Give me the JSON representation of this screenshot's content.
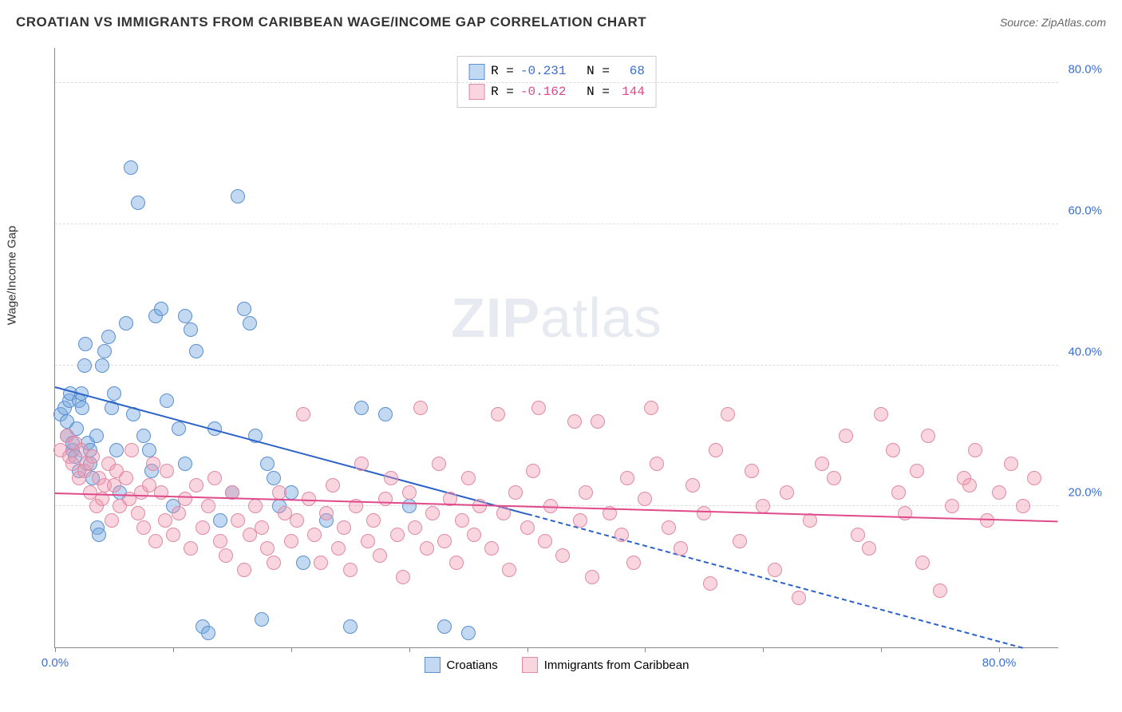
{
  "header": {
    "title": "CROATIAN VS IMMIGRANTS FROM CARIBBEAN WAGE/INCOME GAP CORRELATION CHART",
    "source_prefix": "Source: ",
    "source_name": "ZipAtlas.com"
  },
  "ylabel": "Wage/Income Gap",
  "watermark": {
    "zip": "ZIP",
    "atlas": "atlas"
  },
  "chart": {
    "type": "scatter",
    "xlim": [
      0,
      85
    ],
    "ylim": [
      0,
      85
    ],
    "background_color": "#ffffff",
    "grid_color": "#dddddd",
    "axis_color": "#888888",
    "marker_radius": 9,
    "marker_stroke_width": 1,
    "xticks": [
      0,
      10,
      20,
      30,
      40,
      50,
      60,
      70,
      80
    ],
    "xtick_labels": {
      "0": "0.0%",
      "80": "80.0%"
    },
    "xtick_label_color": "#3b6fd4",
    "yticks": [
      20,
      40,
      60,
      80
    ],
    "ytick_labels": {
      "20": "20.0%",
      "40": "40.0%",
      "60": "60.0%",
      "80": "80.0%"
    },
    "ytick_label_color": "#3b6fd4",
    "label_fontsize": 15
  },
  "series": [
    {
      "name": "Croatians",
      "fill": "rgba(120,170,225,0.45)",
      "stroke": "#5a8fd0",
      "trend_color": "#2b62c9",
      "trend": {
        "x1": 0,
        "y1": 37,
        "x2": 40,
        "y2": 19
      },
      "trend_dash": {
        "x1": 40,
        "y1": 19,
        "x2": 82,
        "y2": 0
      },
      "R": "-0.231",
      "N": "68",
      "stat_color": "#3b6fd4",
      "points": [
        [
          0.5,
          33
        ],
        [
          0.8,
          34
        ],
        [
          1,
          30
        ],
        [
          1,
          32
        ],
        [
          1.2,
          35
        ],
        [
          1.3,
          36
        ],
        [
          1.5,
          28
        ],
        [
          1.5,
          29
        ],
        [
          1.7,
          27
        ],
        [
          1.8,
          31
        ],
        [
          2,
          25
        ],
        [
          2,
          35
        ],
        [
          2.2,
          36
        ],
        [
          2.3,
          34
        ],
        [
          2.5,
          40
        ],
        [
          2.6,
          43
        ],
        [
          2.8,
          29
        ],
        [
          3,
          26
        ],
        [
          3,
          28
        ],
        [
          3.2,
          24
        ],
        [
          3.5,
          30
        ],
        [
          3.6,
          17
        ],
        [
          3.7,
          16
        ],
        [
          4,
          40
        ],
        [
          4.2,
          42
        ],
        [
          4.5,
          44
        ],
        [
          4.8,
          34
        ],
        [
          5,
          36
        ],
        [
          5.2,
          28
        ],
        [
          5.5,
          22
        ],
        [
          6,
          46
        ],
        [
          6.4,
          68
        ],
        [
          6.6,
          33
        ],
        [
          7,
          63
        ],
        [
          7.5,
          30
        ],
        [
          8,
          28
        ],
        [
          8.2,
          25
        ],
        [
          8.5,
          47
        ],
        [
          9,
          48
        ],
        [
          9.5,
          35
        ],
        [
          10,
          20
        ],
        [
          10.5,
          31
        ],
        [
          11,
          26
        ],
        [
          11,
          47
        ],
        [
          11.5,
          45
        ],
        [
          12,
          42
        ],
        [
          12.5,
          3
        ],
        [
          13,
          2
        ],
        [
          13.5,
          31
        ],
        [
          14,
          18
        ],
        [
          15,
          22
        ],
        [
          15.5,
          64
        ],
        [
          16,
          48
        ],
        [
          16.5,
          46
        ],
        [
          17,
          30
        ],
        [
          17.5,
          4
        ],
        [
          18,
          26
        ],
        [
          18.5,
          24
        ],
        [
          19,
          20
        ],
        [
          20,
          22
        ],
        [
          21,
          12
        ],
        [
          23,
          18
        ],
        [
          25,
          3
        ],
        [
          26,
          34
        ],
        [
          28,
          33
        ],
        [
          30,
          20
        ],
        [
          33,
          3
        ],
        [
          35,
          2
        ]
      ]
    },
    {
      "name": "Immigrants from Caribbean",
      "fill": "rgba(240,150,175,0.40)",
      "stroke": "#e08aa5",
      "trend_color": "#e04a8a",
      "trend": {
        "x1": 0,
        "y1": 22,
        "x2": 85,
        "y2": 18
      },
      "R": "-0.162",
      "N": "144",
      "stat_color": "#e04a8a",
      "points": [
        [
          0.5,
          28
        ],
        [
          1,
          30
        ],
        [
          1.2,
          27
        ],
        [
          1.5,
          26
        ],
        [
          1.7,
          29
        ],
        [
          2,
          24
        ],
        [
          2.2,
          28
        ],
        [
          2.5,
          25
        ],
        [
          2.7,
          26
        ],
        [
          3,
          22
        ],
        [
          3.2,
          27
        ],
        [
          3.5,
          20
        ],
        [
          3.7,
          24
        ],
        [
          4,
          21
        ],
        [
          4.2,
          23
        ],
        [
          4.5,
          26
        ],
        [
          4.8,
          18
        ],
        [
          5,
          23
        ],
        [
          5.2,
          25
        ],
        [
          5.5,
          20
        ],
        [
          6,
          24
        ],
        [
          6.3,
          21
        ],
        [
          6.5,
          28
        ],
        [
          7,
          19
        ],
        [
          7.3,
          22
        ],
        [
          7.5,
          17
        ],
        [
          8,
          23
        ],
        [
          8.3,
          26
        ],
        [
          8.5,
          15
        ],
        [
          9,
          22
        ],
        [
          9.3,
          18
        ],
        [
          9.5,
          25
        ],
        [
          10,
          16
        ],
        [
          10.5,
          19
        ],
        [
          11,
          21
        ],
        [
          11.5,
          14
        ],
        [
          12,
          23
        ],
        [
          12.5,
          17
        ],
        [
          13,
          20
        ],
        [
          13.5,
          24
        ],
        [
          14,
          15
        ],
        [
          14.5,
          13
        ],
        [
          15,
          22
        ],
        [
          15.5,
          18
        ],
        [
          16,
          11
        ],
        [
          16.5,
          16
        ],
        [
          17,
          20
        ],
        [
          17.5,
          17
        ],
        [
          18,
          14
        ],
        [
          18.5,
          12
        ],
        [
          19,
          22
        ],
        [
          19.5,
          19
        ],
        [
          20,
          15
        ],
        [
          20.5,
          18
        ],
        [
          21,
          33
        ],
        [
          21.5,
          21
        ],
        [
          22,
          16
        ],
        [
          22.5,
          12
        ],
        [
          23,
          19
        ],
        [
          23.5,
          23
        ],
        [
          24,
          14
        ],
        [
          24.5,
          17
        ],
        [
          25,
          11
        ],
        [
          25.5,
          20
        ],
        [
          26,
          26
        ],
        [
          26.5,
          15
        ],
        [
          27,
          18
        ],
        [
          27.5,
          13
        ],
        [
          28,
          21
        ],
        [
          28.5,
          24
        ],
        [
          29,
          16
        ],
        [
          29.5,
          10
        ],
        [
          30,
          22
        ],
        [
          30.5,
          17
        ],
        [
          31,
          34
        ],
        [
          31.5,
          14
        ],
        [
          32,
          19
        ],
        [
          32.5,
          26
        ],
        [
          33,
          15
        ],
        [
          33.5,
          21
        ],
        [
          34,
          12
        ],
        [
          34.5,
          18
        ],
        [
          35,
          24
        ],
        [
          35.5,
          16
        ],
        [
          36,
          20
        ],
        [
          37,
          14
        ],
        [
          37.5,
          33
        ],
        [
          38,
          19
        ],
        [
          38.5,
          11
        ],
        [
          39,
          22
        ],
        [
          40,
          17
        ],
        [
          40.5,
          25
        ],
        [
          41,
          34
        ],
        [
          41.5,
          15
        ],
        [
          42,
          20
        ],
        [
          43,
          13
        ],
        [
          44,
          32
        ],
        [
          44.5,
          18
        ],
        [
          45,
          22
        ],
        [
          45.5,
          10
        ],
        [
          46,
          32
        ],
        [
          47,
          19
        ],
        [
          48,
          16
        ],
        [
          48.5,
          24
        ],
        [
          49,
          12
        ],
        [
          50,
          21
        ],
        [
          50.5,
          34
        ],
        [
          51,
          26
        ],
        [
          52,
          17
        ],
        [
          53,
          14
        ],
        [
          54,
          23
        ],
        [
          55,
          19
        ],
        [
          55.5,
          9
        ],
        [
          56,
          28
        ],
        [
          57,
          33
        ],
        [
          58,
          15
        ],
        [
          59,
          25
        ],
        [
          60,
          20
        ],
        [
          61,
          11
        ],
        [
          62,
          22
        ],
        [
          63,
          7
        ],
        [
          64,
          18
        ],
        [
          65,
          26
        ],
        [
          66,
          24
        ],
        [
          67,
          30
        ],
        [
          68,
          16
        ],
        [
          69,
          14
        ],
        [
          70,
          33
        ],
        [
          71,
          28
        ],
        [
          71.5,
          22
        ],
        [
          72,
          19
        ],
        [
          73,
          25
        ],
        [
          73.5,
          12
        ],
        [
          74,
          30
        ],
        [
          75,
          8
        ],
        [
          76,
          20
        ],
        [
          77,
          24
        ],
        [
          77.5,
          23
        ],
        [
          78,
          28
        ],
        [
          79,
          18
        ],
        [
          80,
          22
        ],
        [
          81,
          26
        ],
        [
          82,
          20
        ],
        [
          83,
          24
        ]
      ]
    }
  ],
  "stats_labels": {
    "R": "R =",
    "N": "N ="
  },
  "legend": {
    "s1": "Croatians",
    "s2": "Immigrants from Caribbean"
  }
}
